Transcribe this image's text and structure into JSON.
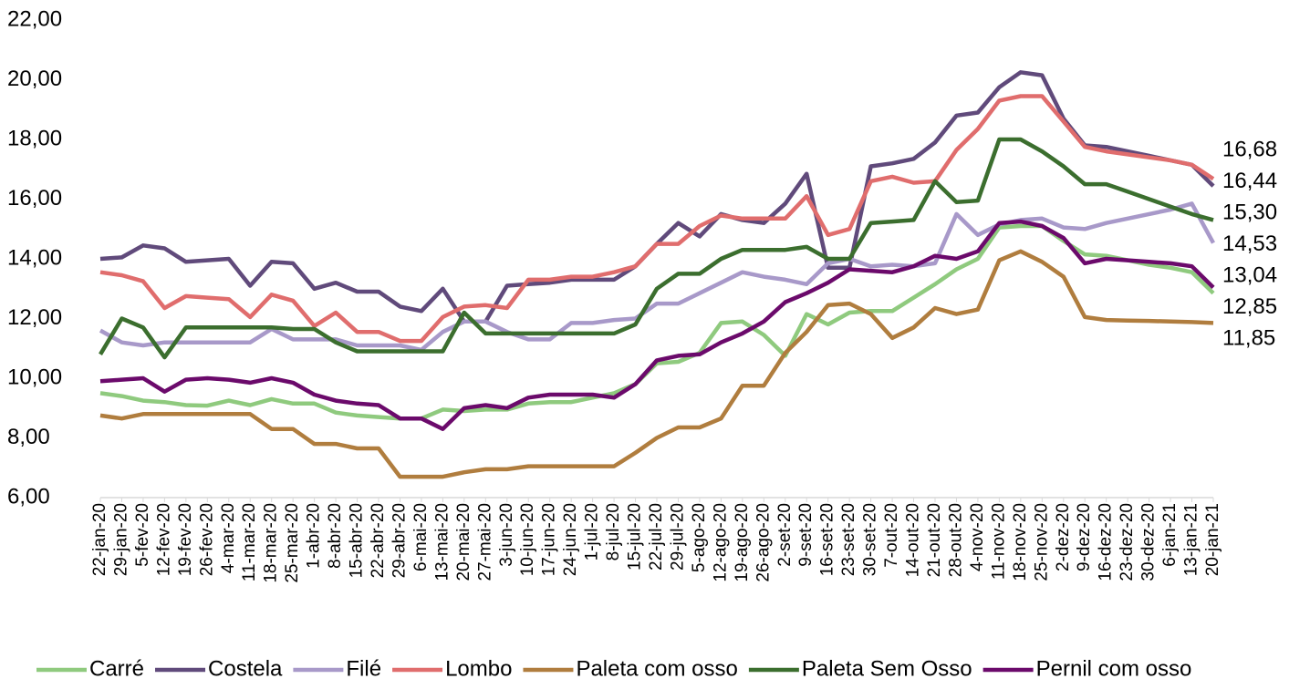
{
  "chart_data": {
    "type": "line",
    "categories": [
      "22-jan-20",
      "29-jan-20",
      "5-fev-20",
      "12-fev-20",
      "19-fev-20",
      "26-fev-20",
      "4-mar-20",
      "11-mar-20",
      "18-mar-20",
      "25-mar-20",
      "1-abr-20",
      "8-abr-20",
      "15-abr-20",
      "22-abr-20",
      "29-abr-20",
      "6-mai-20",
      "13-mai-20",
      "20-mai-20",
      "27-mai-20",
      "3-jun-20",
      "10-jun-20",
      "17-jun-20",
      "24-jun-20",
      "1-jul-20",
      "8-jul-20",
      "15-jul-20",
      "22-jul-20",
      "29-jul-20",
      "5-ago-20",
      "12-ago-20",
      "19-ago-20",
      "26-ago-20",
      "2-set-20",
      "9-set-20",
      "16-set-20",
      "23-set-20",
      "30-set-20",
      "7-out-20",
      "14-out-20",
      "21-out-20",
      "28-out-20",
      "4-nov-20",
      "11-nov-20",
      "18-nov-20",
      "25-nov-20",
      "2-dez-20",
      "9-dez-20",
      "16-dez-20",
      "23-dez-20",
      "30-dez-20",
      "6-jan-21",
      "13-jan-21",
      "20-jan-21"
    ],
    "ylim": [
      6,
      22
    ],
    "yticks": [
      {
        "value": 6,
        "label": "6,00"
      },
      {
        "value": 8,
        "label": "8,00"
      },
      {
        "value": 10,
        "label": "10,00"
      },
      {
        "value": 12,
        "label": "12,00"
      },
      {
        "value": 14,
        "label": "14,00"
      },
      {
        "value": 16,
        "label": "16,00"
      },
      {
        "value": 18,
        "label": "18,00"
      },
      {
        "value": 20,
        "label": "20,00"
      },
      {
        "value": 22,
        "label": "22,00"
      }
    ],
    "grid": false,
    "legend": "bottom",
    "series": [
      {
        "name": "Carré",
        "color": "#8fca7e",
        "end_label": "12,85",
        "values": [
          9.5,
          9.4,
          9.25,
          9.2,
          9.1,
          9.08,
          9.25,
          9.1,
          9.3,
          9.15,
          9.15,
          8.85,
          8.75,
          8.7,
          8.65,
          8.65,
          8.95,
          8.9,
          8.95,
          8.95,
          9.15,
          9.2,
          9.2,
          9.35,
          9.5,
          9.8,
          10.5,
          10.55,
          10.85,
          11.85,
          11.9,
          11.45,
          10.75,
          12.15,
          11.8,
          12.2,
          12.25,
          12.25,
          12.7,
          13.15,
          13.65,
          14.0,
          15.05,
          15.1,
          15.1,
          14.6,
          14.15,
          14.1,
          13.95,
          13.8,
          13.7,
          13.55,
          12.85
        ]
      },
      {
        "name": "Costela",
        "color": "#604a7b",
        "end_label": "16,44",
        "values": [
          14.0,
          14.05,
          14.45,
          14.35,
          13.9,
          13.95,
          14.0,
          13.1,
          13.9,
          13.85,
          13.0,
          13.2,
          12.9,
          12.9,
          12.4,
          12.25,
          13.0,
          11.9,
          11.9,
          13.1,
          13.15,
          13.2,
          13.3,
          13.3,
          13.3,
          13.75,
          14.5,
          15.2,
          14.75,
          15.5,
          15.3,
          15.2,
          15.85,
          16.85,
          13.7,
          13.7,
          17.1,
          17.2,
          17.35,
          17.9,
          18.8,
          18.9,
          19.75,
          20.25,
          20.15,
          18.7,
          17.8,
          17.75,
          17.6,
          17.45,
          17.3,
          17.15,
          16.44
        ]
      },
      {
        "name": "Filé",
        "color": "#a899c9",
        "end_label": "14,53",
        "values": [
          11.6,
          11.2,
          11.1,
          11.2,
          11.2,
          11.2,
          11.2,
          11.2,
          11.65,
          11.3,
          11.3,
          11.3,
          11.1,
          11.1,
          11.1,
          10.95,
          11.55,
          11.9,
          11.9,
          11.55,
          11.3,
          11.3,
          11.85,
          11.85,
          11.95,
          12.0,
          12.5,
          12.5,
          12.85,
          13.2,
          13.55,
          13.4,
          13.3,
          13.15,
          13.85,
          14.0,
          13.75,
          13.8,
          13.75,
          13.85,
          15.5,
          14.8,
          15.15,
          15.3,
          15.35,
          15.05,
          15.0,
          15.2,
          15.35,
          15.5,
          15.65,
          15.85,
          14.53
        ]
      },
      {
        "name": "Lombo",
        "color": "#e06d6d",
        "end_label": "16,68",
        "values": [
          13.55,
          13.45,
          13.25,
          12.35,
          12.75,
          12.7,
          12.65,
          12.05,
          12.8,
          12.6,
          11.75,
          12.2,
          11.55,
          11.55,
          11.25,
          11.25,
          12.05,
          12.4,
          12.45,
          12.35,
          13.3,
          13.3,
          13.4,
          13.4,
          13.55,
          13.75,
          14.5,
          14.5,
          15.1,
          15.45,
          15.35,
          15.35,
          15.35,
          16.1,
          14.8,
          15.0,
          16.6,
          16.75,
          16.55,
          16.6,
          17.65,
          18.35,
          19.3,
          19.45,
          19.45,
          18.6,
          17.75,
          17.6,
          17.5,
          17.4,
          17.3,
          17.15,
          16.68
        ]
      },
      {
        "name": "Paleta com osso",
        "color": "#b07d3e",
        "end_label": "11,85",
        "values": [
          8.75,
          8.65,
          8.8,
          8.8,
          8.8,
          8.8,
          8.8,
          8.8,
          8.3,
          8.3,
          7.8,
          7.8,
          7.65,
          7.65,
          6.7,
          6.7,
          6.7,
          6.85,
          6.95,
          6.95,
          7.05,
          7.05,
          7.05,
          7.05,
          7.05,
          7.5,
          8.0,
          8.35,
          8.35,
          8.65,
          9.75,
          9.75,
          10.85,
          11.55,
          12.45,
          12.5,
          12.15,
          11.35,
          11.7,
          12.35,
          12.15,
          12.3,
          13.95,
          14.25,
          13.9,
          13.4,
          12.05,
          11.95,
          11.93,
          11.92,
          11.9,
          11.88,
          11.85
        ]
      },
      {
        "name": "Paleta Sem Osso",
        "color": "#3b6e2e",
        "end_label": "15,30",
        "values": [
          10.8,
          12.0,
          11.7,
          10.7,
          11.7,
          11.7,
          11.7,
          11.7,
          11.7,
          11.65,
          11.65,
          11.2,
          10.9,
          10.9,
          10.9,
          10.9,
          10.9,
          12.2,
          11.5,
          11.5,
          11.5,
          11.5,
          11.5,
          11.5,
          11.5,
          11.8,
          13.0,
          13.5,
          13.5,
          14.0,
          14.3,
          14.3,
          14.3,
          14.4,
          14.0,
          14.0,
          15.2,
          15.25,
          15.3,
          16.6,
          15.9,
          15.95,
          18.0,
          18.0,
          17.6,
          17.1,
          16.5,
          16.5,
          16.25,
          16.0,
          15.75,
          15.5,
          15.3
        ]
      },
      {
        "name": "Pernil com osso",
        "color": "#6b0a6b",
        "end_label": "13,04",
        "values": [
          9.9,
          9.95,
          10.0,
          9.55,
          9.95,
          10.0,
          9.95,
          9.85,
          10.0,
          9.85,
          9.45,
          9.25,
          9.15,
          9.1,
          8.65,
          8.65,
          8.3,
          9.0,
          9.1,
          9.0,
          9.35,
          9.45,
          9.45,
          9.45,
          9.35,
          9.8,
          10.6,
          10.75,
          10.8,
          11.2,
          11.5,
          11.9,
          12.55,
          12.85,
          13.2,
          13.65,
          13.6,
          13.55,
          13.75,
          14.1,
          14.0,
          14.25,
          15.2,
          15.25,
          15.1,
          14.7,
          13.85,
          14.0,
          13.95,
          13.9,
          13.85,
          13.75,
          13.04
        ]
      }
    ]
  }
}
